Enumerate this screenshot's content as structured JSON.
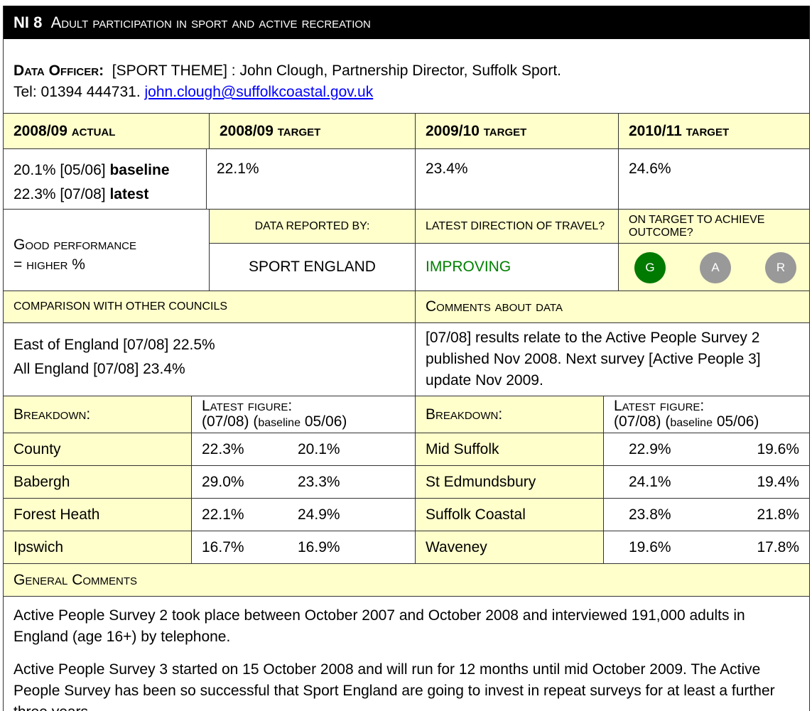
{
  "header": {
    "code": "NI 8",
    "title": "Adult participation in sport and active recreation"
  },
  "officer": {
    "label": "Data Officer:",
    "line1": "[SPORT THEME] : John Clough, Partnership Director, Suffolk Sport.",
    "line2": "Tel: 01394 444731.",
    "email": "john.clough@suffolkcoastal.gov.uk"
  },
  "targets": {
    "headers": [
      "2008/09 actual",
      "2008/09 target",
      "2009/10 target",
      "2010/11 target"
    ],
    "actual": [
      {
        "value": "20.1% [05/06]",
        "note": "baseline"
      },
      {
        "value": "22.3% [07/08]",
        "note": "latest"
      }
    ],
    "values": [
      "22.1%",
      "23.4%",
      "24.6%"
    ]
  },
  "status": {
    "performance": "Good performance",
    "performance_rule": "= higher %",
    "reported_by_label": "DATA REPORTED BY:",
    "reported_by": "SPORT ENGLAND",
    "direction_label": "LATEST DIRECTION OF TRAVEL?",
    "direction": "IMPROVING",
    "target_label": "ON TARGET TO ACHIEVE OUTCOME?",
    "rag": [
      "G",
      "A",
      "R"
    ]
  },
  "comparison": {
    "label": "COMPARISON WITH OTHER COUNCILS",
    "lines": [
      "East of England [07/08] 22.5%",
      "All England [07/08] 23.4%"
    ]
  },
  "comments": {
    "label": "Comments about data",
    "text": "[07/08] results relate to the Active People Survey 2 published Nov 2008. Next survey [Active People 3] update Nov 2009."
  },
  "breakdown": {
    "label": "Breakdown:",
    "figure_label": "Latest figure:",
    "period": "(07/08) (",
    "note": "baseline",
    "end": " 05/06)",
    "left": [
      {
        "area": "County",
        "latest": "22.3%",
        "baseline": "20.1%"
      },
      {
        "area": "Babergh",
        "latest": "29.0%",
        "baseline": "23.3%"
      },
      {
        "area": "Forest Heath",
        "latest": "22.1%",
        "baseline": "24.9%"
      },
      {
        "area": "Ipswich",
        "latest": "16.7%",
        "baseline": "16.9%"
      }
    ],
    "right": [
      {
        "area": "Mid Suffolk",
        "latest": "22.9%",
        "baseline": "19.6%"
      },
      {
        "area": "St Edmundsbury",
        "latest": "24.1%",
        "baseline": "19.4%"
      },
      {
        "area": "Suffolk Coastal",
        "latest": "23.8%",
        "baseline": "21.8%"
      },
      {
        "area": "Waveney",
        "latest": "19.6%",
        "baseline": "17.8%"
      }
    ]
  },
  "general": {
    "label": "General Comments",
    "paragraphs": [
      "Active People Survey 2 took place between October 2007 and October 2008 and interviewed 191,000 adults in England (age 16+) by telephone.",
      "Active People Survey 3 started on 15 October 2008 and will run for 12 months until mid October 2009. The Active People Survey has been so successful that Sport England are going to invest in repeat surveys for at least a further three years."
    ]
  }
}
